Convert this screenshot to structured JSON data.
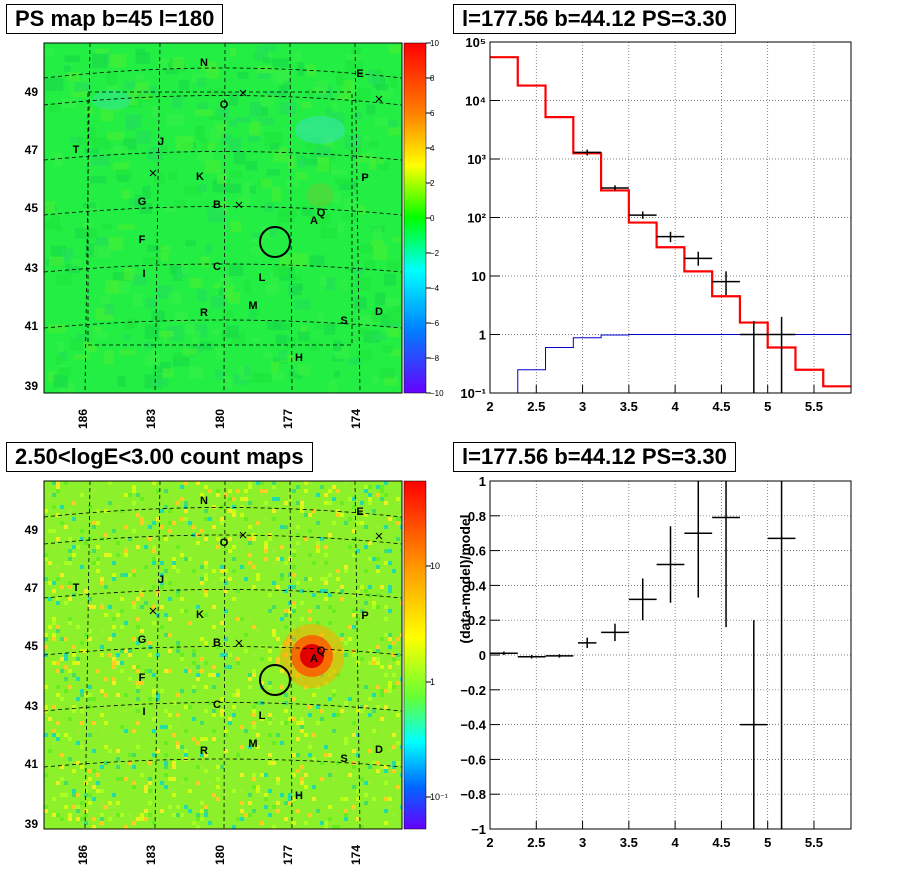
{
  "panels": {
    "ps_map": {
      "title": "PS map b=45 l=180",
      "colorbar": {
        "labels": [
          "10",
          "8",
          "6",
          "4",
          "2",
          "0",
          "−2",
          "−4",
          "−6",
          "−8",
          "−10"
        ]
      }
    },
    "spectrum": {
      "title": "l=177.56 b=44.12 PS=3.30"
    },
    "count_map": {
      "title": "2.50<logE<3.00 count maps",
      "colorbar": {
        "labels": [
          "10",
          "1",
          "10⁻¹"
        ]
      }
    },
    "residual": {
      "title": "l=177.56 b=44.12 PS=3.30",
      "ylabel": "(data-model)/model"
    }
  },
  "map_axes": {
    "lat_ticks": [
      "49",
      "47",
      "45",
      "43",
      "41",
      "39"
    ],
    "lon_ticks": [
      "186",
      "183",
      "180",
      "177",
      "174"
    ]
  },
  "sky_labels": [
    "N",
    "E",
    "O",
    "T",
    "J",
    "K",
    "P",
    "G",
    "B",
    "Q",
    "A",
    "F",
    "C",
    "I",
    "L",
    "R",
    "M",
    "S",
    "D",
    "H"
  ],
  "colors": {
    "model": "#ff0000",
    "data": "#000000",
    "background_model": "#0000cc",
    "circle": "#000000"
  },
  "chart_data": [
    {
      "type": "line",
      "panel": "spectrum",
      "title": "l=177.56 b=44.12 PS=3.30",
      "xlim": [
        2.0,
        5.9
      ],
      "ylim": [
        0.1,
        100000
      ],
      "yscale": "log",
      "grid": true,
      "x_ticks": [
        "2",
        "2.5",
        "3",
        "3.5",
        "4",
        "4.5",
        "5",
        "5.5"
      ],
      "y_ticks": [
        "10⁻¹",
        "1",
        "10",
        "10²",
        "10³",
        "10⁴",
        "10⁵"
      ],
      "series": [
        {
          "style": "step-red",
          "edges": [
            2.0,
            2.3,
            2.6,
            2.9,
            3.2,
            3.5,
            3.8,
            4.1,
            4.4,
            4.7,
            5.0,
            5.3,
            5.6,
            5.9
          ],
          "values": [
            55000,
            18000,
            5200,
            1250,
            290,
            82,
            31,
            12,
            4.5,
            1.6,
            0.6,
            0.25,
            0.13
          ]
        },
        {
          "style": "step-blue",
          "edges": [
            2.0,
            2.3,
            2.6,
            2.9,
            3.2,
            3.5,
            3.8,
            4.1,
            4.4,
            4.7,
            5.0,
            5.3,
            5.6,
            5.9
          ],
          "values": [
            0.1,
            0.25,
            0.6,
            0.88,
            0.98,
            1.0,
            1.0,
            1.0,
            1.0,
            1.0,
            1.0,
            1.0,
            1.0
          ]
        },
        {
          "style": "errorbars",
          "points": [
            {
              "x": 3.05,
              "xerr": 0.15,
              "y": 1300,
              "ylo": 1150,
              "yhi": 1450
            },
            {
              "x": 3.35,
              "xerr": 0.15,
              "y": 320,
              "ylo": 290,
              "yhi": 355
            },
            {
              "x": 3.65,
              "xerr": 0.15,
              "y": 110,
              "ylo": 95,
              "yhi": 127
            },
            {
              "x": 3.95,
              "xerr": 0.15,
              "y": 47,
              "ylo": 38,
              "yhi": 57
            },
            {
              "x": 4.25,
              "xerr": 0.15,
              "y": 20,
              "ylo": 15,
              "yhi": 26
            },
            {
              "x": 4.55,
              "xerr": 0.15,
              "y": 8,
              "ylo": 4.7,
              "yhi": 12
            },
            {
              "x": 4.85,
              "xerr": 0.15,
              "y": 1.0,
              "ylo": 0.1,
              "yhi": 1.7
            },
            {
              "x": 5.15,
              "xerr": 0.15,
              "y": 1.0,
              "ylo": 0.1,
              "yhi": 2.0
            }
          ]
        }
      ]
    },
    {
      "type": "scatter",
      "panel": "residual",
      "title": "l=177.56 b=44.12 PS=3.30",
      "ylabel": "(data-model)/model",
      "xlim": [
        2.0,
        5.9
      ],
      "ylim": [
        -1.0,
        1.0
      ],
      "grid": true,
      "x_ticks": [
        "2",
        "2.5",
        "3",
        "3.5",
        "4",
        "4.5",
        "5",
        "5.5"
      ],
      "y_ticks": [
        "−1",
        "−0.8",
        "−0.6",
        "−0.4",
        "−0.2",
        "0",
        "0.2",
        "0.4",
        "0.6",
        "0.8",
        "1"
      ],
      "points": [
        {
          "x": 2.15,
          "xerr": 0.15,
          "y": 0.01,
          "ylo": 0.0,
          "yhi": 0.02
        },
        {
          "x": 2.45,
          "xerr": 0.15,
          "y": -0.01,
          "ylo": -0.02,
          "yhi": 0.0
        },
        {
          "x": 2.75,
          "xerr": 0.15,
          "y": -0.005,
          "ylo": -0.015,
          "yhi": 0.005
        },
        {
          "x": 3.05,
          "xerr": 0.1,
          "y": 0.07,
          "ylo": 0.04,
          "yhi": 0.1
        },
        {
          "x": 3.35,
          "xerr": 0.15,
          "y": 0.13,
          "ylo": 0.08,
          "yhi": 0.18
        },
        {
          "x": 3.65,
          "xerr": 0.15,
          "y": 0.32,
          "ylo": 0.2,
          "yhi": 0.44
        },
        {
          "x": 3.95,
          "xerr": 0.15,
          "y": 0.52,
          "ylo": 0.3,
          "yhi": 0.74
        },
        {
          "x": 4.25,
          "xerr": 0.15,
          "y": 0.7,
          "ylo": 0.33,
          "yhi": 1.0
        },
        {
          "x": 4.55,
          "xerr": 0.15,
          "y": 0.79,
          "ylo": 0.16,
          "yhi": 1.0
        },
        {
          "x": 4.85,
          "xerr": 0.15,
          "y": -0.4,
          "ylo": -1.0,
          "yhi": 0.2
        },
        {
          "x": 5.15,
          "xerr": 0.15,
          "y": 0.67,
          "ylo": -1.0,
          "yhi": 1.0
        }
      ]
    }
  ]
}
